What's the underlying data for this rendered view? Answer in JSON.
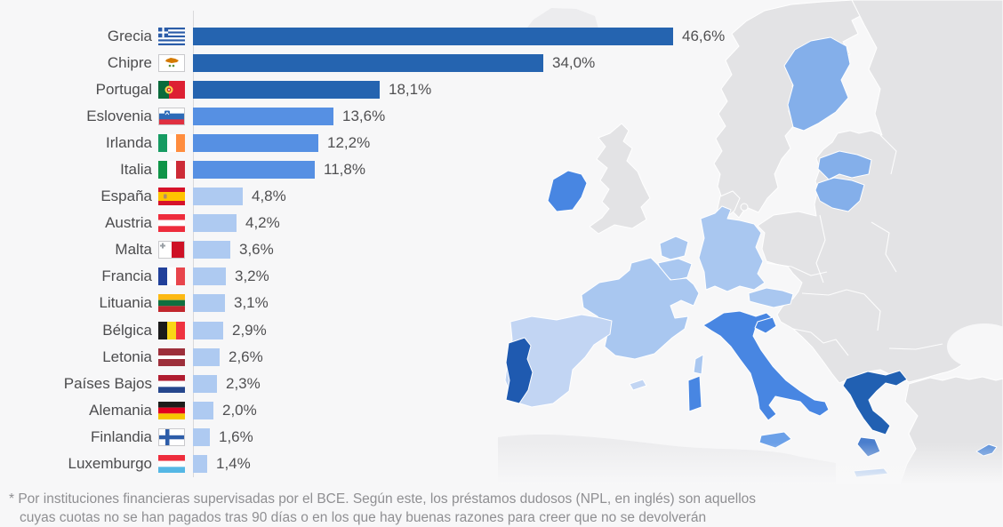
{
  "chart_data": {
    "type": "bar",
    "orientation": "horizontal",
    "title": "",
    "xlabel": "",
    "ylabel": "",
    "xlim": [
      0,
      46.6
    ],
    "value_suffix": "%",
    "decimal_separator": ",",
    "grid": false,
    "legend": false,
    "categories": [
      "Grecia",
      "Chipre",
      "Portugal",
      "Eslovenia",
      "Irlanda",
      "Italia",
      "España",
      "Austria",
      "Malta",
      "Francia",
      "Lituania",
      "Bélgica",
      "Letonia",
      "Países Bajos",
      "Alemania",
      "Finlandia",
      "Luxemburgo"
    ],
    "values": [
      46.6,
      34.0,
      18.1,
      13.6,
      12.2,
      11.8,
      4.8,
      4.2,
      3.6,
      3.2,
      3.1,
      2.9,
      2.6,
      2.3,
      2.0,
      1.6,
      1.4
    ],
    "value_labels": [
      "46,6%",
      "34,0%",
      "18,1%",
      "13,6%",
      "12,2%",
      "11,8%",
      "4,8%",
      "4,2%",
      "3,6%",
      "3,2%",
      "3,1%",
      "2,9%",
      "2,6%",
      "2,3%",
      "2,0%",
      "1,6%",
      "1,4%"
    ],
    "colors": {
      "high": "#2564b0",
      "mid": "#5690e3",
      "low": "#aecaf1"
    },
    "items": [
      {
        "key": "grecia",
        "country": "Grecia",
        "value": 46.6,
        "label": "46,6%",
        "tier": "high",
        "flag": {
          "type": "greece",
          "blue": "#2b5ca8",
          "white": "#ffffff"
        }
      },
      {
        "key": "chipre",
        "country": "Chipre",
        "value": 34.0,
        "label": "34,0%",
        "tier": "high",
        "flag": {
          "type": "cyprus",
          "bg": "#ffffff",
          "island": "#d47a00",
          "branch": "#5a8f3c",
          "border": true
        }
      },
      {
        "key": "portugal",
        "country": "Portugal",
        "value": 18.1,
        "label": "18,1%",
        "tier": "high",
        "flag": {
          "type": "portugal",
          "green": "#0a6b3c",
          "red": "#dd2033",
          "ring": "#ffd34d",
          "inner": "#cc3333"
        }
      },
      {
        "key": "eslovenia",
        "country": "Eslovenia",
        "value": 13.6,
        "label": "13,6%",
        "tier": "mid",
        "flag": {
          "type": "slovenia",
          "stripes": [
            "#ffffff",
            "#2e6bb8",
            "#e03040"
          ],
          "shield": "#2e6bb8",
          "border": true
        }
      },
      {
        "key": "irlanda",
        "country": "Irlanda",
        "value": 12.2,
        "label": "12,2%",
        "tier": "mid",
        "flag": {
          "type": "v",
          "stripes": [
            "#169b62",
            "#ffffff",
            "#ff8d3e"
          ]
        }
      },
      {
        "key": "italia",
        "country": "Italia",
        "value": 11.8,
        "label": "11,8%",
        "tier": "mid",
        "flag": {
          "type": "v",
          "stripes": [
            "#109548",
            "#ffffff",
            "#cd2b37"
          ]
        }
      },
      {
        "key": "espana",
        "country": "España",
        "value": 4.8,
        "label": "4,8%",
        "tier": "low",
        "flag": {
          "type": "spain",
          "red": "#d6122a",
          "yellow": "#ffc400",
          "emblem": "#b08a6a"
        }
      },
      {
        "key": "austria",
        "country": "Austria",
        "value": 4.2,
        "label": "4,2%",
        "tier": "low",
        "flag": {
          "type": "h",
          "stripes": [
            "#ee2c3c",
            "#ffffff",
            "#ee2c3c"
          ]
        }
      },
      {
        "key": "malta",
        "country": "Malta",
        "value": 3.6,
        "label": "3,6%",
        "tier": "low",
        "flag": {
          "type": "malta",
          "white": "#ffffff",
          "red": "#ce1126",
          "cross": "#9aa0a6",
          "border": true
        }
      },
      {
        "key": "francia",
        "country": "Francia",
        "value": 3.2,
        "label": "3,2%",
        "tier": "low",
        "flag": {
          "type": "v",
          "stripes": [
            "#21409a",
            "#ffffff",
            "#e8454c"
          ]
        }
      },
      {
        "key": "lituania",
        "country": "Lituania",
        "value": 3.1,
        "label": "3,1%",
        "tier": "low",
        "flag": {
          "type": "h",
          "stripes": [
            "#fdb913",
            "#107040",
            "#c1272d"
          ]
        }
      },
      {
        "key": "belgica",
        "country": "Bélgica",
        "value": 2.9,
        "label": "2,9%",
        "tier": "low",
        "flag": {
          "type": "v",
          "stripes": [
            "#1a1a1a",
            "#f9d616",
            "#ef3340"
          ]
        }
      },
      {
        "key": "letonia",
        "country": "Letonia",
        "value": 2.6,
        "label": "2,6%",
        "tier": "low",
        "flag": {
          "type": "h",
          "stripes": [
            "#9d2f3b",
            "#ffffff",
            "#9d2f3b"
          ],
          "ratio": [
            2,
            1,
            2
          ]
        }
      },
      {
        "key": "paises-bajos",
        "country": "Países Bajos",
        "value": 2.3,
        "label": "2,3%",
        "tier": "low",
        "flag": {
          "type": "h",
          "stripes": [
            "#b01c30",
            "#ffffff",
            "#26478d"
          ]
        }
      },
      {
        "key": "alemania",
        "country": "Alemania",
        "value": 2.0,
        "label": "2,0%",
        "tier": "low",
        "flag": {
          "type": "h",
          "stripes": [
            "#1d1d1b",
            "#e1001f",
            "#f6c500"
          ]
        }
      },
      {
        "key": "finlandia",
        "country": "Finlandia",
        "value": 1.6,
        "label": "1,6%",
        "tier": "low",
        "flag": {
          "type": "finland",
          "bg": "#ffffff",
          "cross": "#2d5da9",
          "border": true
        }
      },
      {
        "key": "luxemburgo",
        "country": "Luxemburgo",
        "value": 1.4,
        "label": "1,4%",
        "tier": "low",
        "flag": {
          "type": "h",
          "stripes": [
            "#ee2c3c",
            "#ffffff",
            "#55b7e5"
          ]
        }
      }
    ]
  },
  "footnote": {
    "line1": "* Por instituciones financieras supervisadas por el BCE. Según este, los préstamos dudosos (NPL, en inglés) son aquellos",
    "line2": "cuyas cuotas no se han pagados tras 90 días o en los que hay buenas razones para creer que no se devolverán"
  },
  "map": {
    "fills": {
      "sea": "#f7f7f8",
      "land": "#e3e3e5",
      "land_faint": "#ececee",
      "finland": "#84afea",
      "latvia": "#84afea",
      "lithuania": "#84afea",
      "crete": "#84afea",
      "ireland": "#4886e2",
      "italy": "#4886e2",
      "slovenia": "#4886e2",
      "sardinia": "#4886e2",
      "sicily": "#6ba0e8",
      "cyprus": "#5b8fd9",
      "netherlands": "#a9c7f0",
      "belgium": "#a9c7f0",
      "germany": "#a9c7f0",
      "france": "#a9c7f0",
      "austria": "#a9c7f0",
      "corsica": "#a9c7f0",
      "spain": "#c2d5f3",
      "balearic": "#c2d5f3",
      "portugal": "#1f5ab0",
      "greece": "#2160b2",
      "peloponnese": "#4a7ecd"
    }
  }
}
